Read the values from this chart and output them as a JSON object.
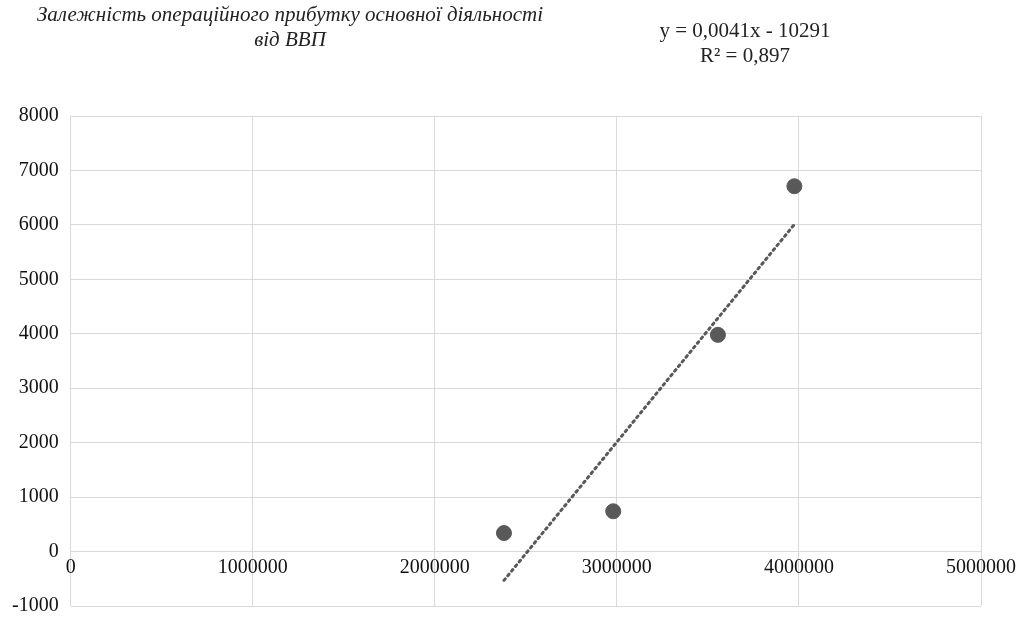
{
  "chart_data": {
    "type": "scatter",
    "title": "Залежність операційного прибутку основної діяльності від ВВП",
    "annotations": [
      "y = 0,0041x - 10291",
      "R² = 0,897"
    ],
    "xlim": [
      0,
      5000000
    ],
    "xticks": [
      0,
      1000000,
      2000000,
      3000000,
      4000000,
      5000000
    ],
    "ylim": [
      -1000,
      8000
    ],
    "yticks": [
      -1000,
      0,
      1000,
      2000,
      3000,
      4000,
      5000,
      6000,
      7000,
      8000
    ],
    "grid": true,
    "legend": false,
    "marker": "circle",
    "series": [
      {
        "color": "#595959",
        "x": [
          2380000,
          2980000,
          3555000,
          3975000
        ],
        "values": [
          340,
          740,
          3980,
          6710
        ]
      },
      {
        "type": "line",
        "color": "#595959",
        "line_style": "dotted",
        "marker": "none",
        "x": [
          2380000,
          3975000
        ],
        "values": [
          -530,
          6010
        ]
      }
    ]
  }
}
